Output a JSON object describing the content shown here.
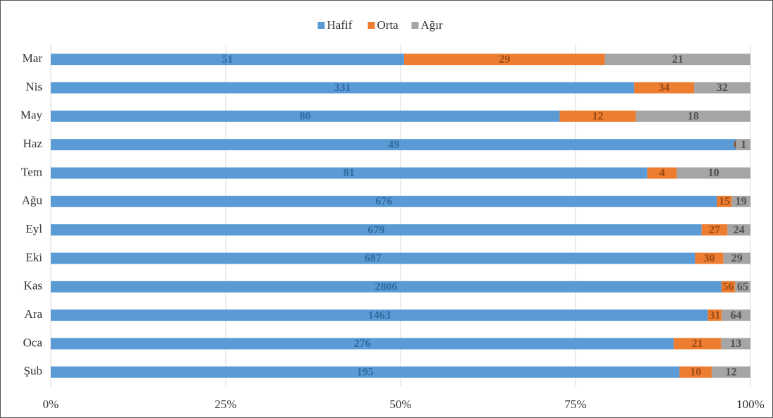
{
  "chart_data": {
    "type": "bar",
    "orientation": "horizontal",
    "stacking": "percent",
    "categories": [
      "Mar",
      "Nis",
      "May",
      "Haz",
      "Tem",
      "Ağu",
      "Eyl",
      "Eki",
      "Kas",
      "Ara",
      "Oca",
      "Şub"
    ],
    "series": [
      {
        "name": "Hafif",
        "color": "#5b9bd5",
        "label_color": "#2f6aa3",
        "values": [
          51,
          331,
          80,
          49,
          81,
          676,
          679,
          687,
          2806,
          1463,
          276,
          195
        ]
      },
      {
        "name": "Orta",
        "color": "#ed7d31",
        "label_color": "#9c4a14",
        "values": [
          29,
          34,
          12,
          0,
          4,
          15,
          27,
          30,
          56,
          31,
          21,
          10
        ]
      },
      {
        "name": "Ağır",
        "color": "#a5a5a5",
        "label_color": "#505050",
        "values": [
          21,
          32,
          18,
          1,
          10,
          19,
          24,
          29,
          65,
          64,
          13,
          12
        ]
      }
    ],
    "xlim": [
      0,
      100
    ],
    "xticks": [
      {
        "value": 0,
        "label": "0%"
      },
      {
        "value": 25,
        "label": "25%"
      },
      {
        "value": 50,
        "label": "50%"
      },
      {
        "value": 75,
        "label": "75%"
      },
      {
        "value": 100,
        "label": "100%"
      }
    ],
    "grid": true,
    "legend": "top",
    "data_labels": true
  }
}
